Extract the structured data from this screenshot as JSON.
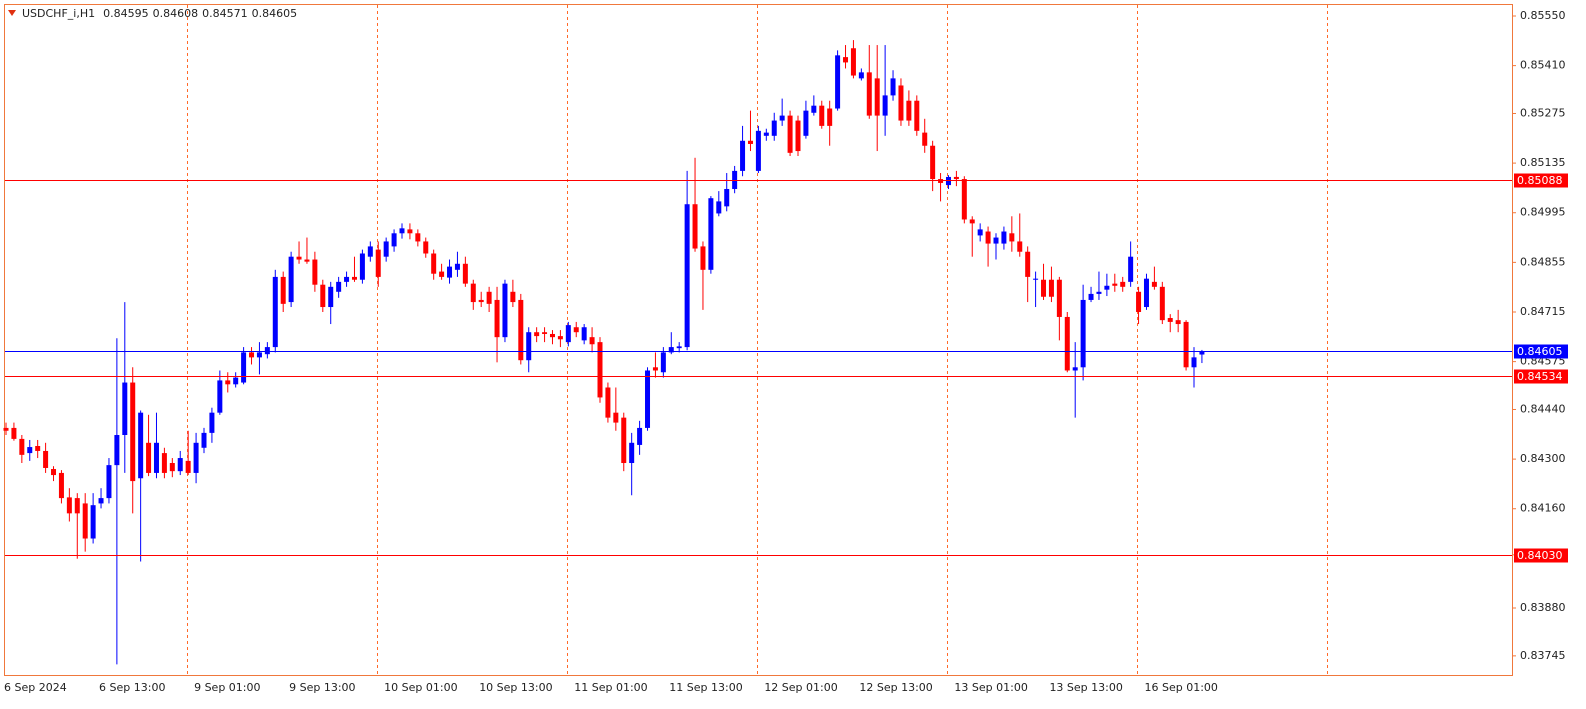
{
  "chart_data": {
    "type": "candlestick",
    "title": "USDCHF_i,H1",
    "up_color": "#0000ff",
    "down_color": "#ff0000",
    "ylim": [
      0.83691,
      0.85581
    ],
    "yticks": [
      {
        "value": 0.8555,
        "label": "0.85550"
      },
      {
        "value": 0.8541,
        "label": "0.85410"
      },
      0.85275,
      0.85135,
      0.84995,
      0.84855,
      0.84715,
      0.84575,
      {
        "value": 0.8444,
        "label": "0.84440"
      },
      {
        "value": 0.843,
        "label": "0.84300"
      },
      {
        "value": 0.8416,
        "label": "0.84160"
      },
      {
        "value": 0.8403,
        "label": "0.84030"
      },
      {
        "value": 0.8388,
        "label": "0.83880"
      },
      0.83745
    ],
    "hlines": [
      {
        "value": 0.85088,
        "color": "#ff0000"
      },
      {
        "value": 0.84605,
        "color": "#0000ff"
      },
      {
        "value": 0.84534,
        "color": "#ff0000"
      },
      {
        "value": 0.8403,
        "label": "0.84030",
        "color": "#ff0000"
      }
    ],
    "categories": [
      "6 Sep 2024",
      null,
      null,
      null,
      null,
      null,
      null,
      null,
      null,
      null,
      null,
      null,
      "6 Sep 13:00",
      null,
      null,
      null,
      null,
      null,
      null,
      null,
      null,
      null,
      null,
      null,
      "9 Sep 01:00",
      null,
      null,
      null,
      null,
      null,
      null,
      null,
      null,
      null,
      null,
      null,
      "9 Sep 13:00",
      null,
      null,
      null,
      null,
      null,
      null,
      null,
      null,
      null,
      null,
      null,
      "10 Sep 01:00",
      null,
      null,
      null,
      null,
      null,
      null,
      null,
      null,
      null,
      null,
      null,
      "10 Sep 13:00",
      null,
      null,
      null,
      null,
      null,
      null,
      null,
      null,
      null,
      null,
      null,
      "11 Sep 01:00",
      null,
      null,
      null,
      null,
      null,
      null,
      null,
      null,
      null,
      null,
      null,
      "11 Sep 13:00",
      null,
      null,
      null,
      null,
      null,
      null,
      null,
      null,
      null,
      null,
      null,
      "12 Sep 01:00",
      null,
      null,
      null,
      null,
      null,
      null,
      null,
      null,
      null,
      null,
      null,
      "12 Sep 13:00",
      null,
      null,
      null,
      null,
      null,
      null,
      null,
      null,
      null,
      null,
      null,
      "13 Sep 01:00",
      null,
      null,
      null,
      null,
      null,
      null,
      null,
      null,
      null,
      null,
      null,
      "13 Sep 13:00",
      null,
      null,
      null,
      null,
      null,
      null,
      null,
      null,
      null,
      null,
      null,
      "16 Sep 01:00",
      null,
      null,
      null,
      null,
      null,
      null,
      null
    ],
    "open": [
      0.84388,
      0.84388,
      0.84357,
      0.84317,
      0.84337,
      0.84323,
      0.84272,
      0.84261,
      0.84192,
      0.8419,
      0.84175,
      0.84076,
      0.84175,
      0.8419,
      0.84283,
      0.84368,
      0.84516,
      0.84246,
      0.84346,
      0.84261,
      0.84317,
      0.84289,
      0.84266,
      0.84295,
      0.84261,
      0.84332,
      0.84374,
      0.84431,
      0.84522,
      0.84511,
      0.84516,
      0.84601,
      0.84587,
      0.84596,
      0.84616,
      0.84814,
      0.84743,
      0.84871,
      0.84863,
      0.84863,
      0.84792,
      0.84729,
      0.84772,
      0.848,
      0.84814,
      0.84806,
      0.84871,
      0.84891,
      0.84871,
      0.849,
      0.84937,
      0.84948,
      0.84937,
      0.84914,
      0.8488,
      0.84829,
      0.84812,
      0.84834,
      0.84851,
      0.84795,
      0.84749,
      0.84772,
      0.84749,
      0.84644,
      0.84772,
      0.84749,
      0.84579,
      0.84658,
      0.84658,
      0.84653,
      0.84647,
      0.8463,
      0.84672,
      0.84635,
      0.84644,
      0.8463,
      0.84502,
      0.84431,
      0.84417,
      0.84289,
      0.8434,
      0.84388,
      0.84559,
      0.84545,
      0.84601,
      0.84613,
      0.84616,
      0.85019,
      0.849,
      0.84834,
      0.84993,
      0.85013,
      0.85062,
      0.85113,
      0.85198,
      0.85113,
      0.85212,
      0.85212,
      0.85255,
      0.85269,
      0.85255,
      0.85212,
      0.85277,
      0.85297,
      0.85289,
      0.85289,
      0.85434,
      0.85459,
      0.85374,
      0.85391,
      0.85374,
      0.85269,
      0.85326,
      0.85354,
      0.85311,
      0.85311,
      0.85221,
      0.85184,
      0.8509,
      0.85073,
      0.85096,
      0.8509,
      0.84976,
      0.84931,
      0.84942,
      0.84908,
      0.84908,
      0.84937,
      0.84914,
      0.84885,
      0.84806,
      0.84806,
      0.84806,
      0.84806,
      0.84701,
      0.8455,
      0.84559,
      0.84749,
      0.84766,
      0.84778,
      0.84795,
      0.848,
      0.848,
      0.84772,
      0.84729,
      0.848,
      0.84786,
      0.84698,
      0.84692,
      0.84687,
      0.84559,
      0.84595
    ],
    "high": [
      0.84403,
      0.84403,
      0.84368,
      0.84354,
      0.84354,
      0.84346,
      0.8428,
      0.84269,
      0.84218,
      0.84204,
      0.84204,
      0.84204,
      0.84218,
      0.84303,
      0.84641,
      0.84743,
      0.84559,
      0.84437,
      0.84425,
      0.84431,
      0.84332,
      0.84303,
      0.84323,
      0.8438,
      0.84374,
      0.84388,
      0.84445,
      0.8455,
      0.84545,
      0.84545,
      0.84616,
      0.84616,
      0.8463,
      0.8463,
      0.84834,
      0.84829,
      0.84885,
      0.84914,
      0.84925,
      0.84885,
      0.84806,
      0.848,
      0.84814,
      0.84829,
      0.84871,
      0.84891,
      0.84914,
      0.84914,
      0.84925,
      0.84948,
      0.84965,
      0.84965,
      0.84948,
      0.84925,
      0.84891,
      0.84851,
      0.84863,
      0.84885,
      0.84871,
      0.84806,
      0.84772,
      0.84786,
      0.84786,
      0.84806,
      0.84806,
      0.84766,
      0.84672,
      0.84672,
      0.84672,
      0.84664,
      0.84664,
      0.84687,
      0.84687,
      0.84681,
      0.84672,
      0.84644,
      0.84516,
      0.84502,
      0.84431,
      0.84374,
      0.84408,
      0.84559,
      0.84601,
      0.84616,
      0.84658,
      0.8463,
      0.85113,
      0.8515,
      0.84914,
      0.85042,
      0.85056,
      0.85107,
      0.85127,
      0.8524,
      0.85283,
      0.8524,
      0.85232,
      0.85277,
      0.85317,
      0.85283,
      0.85269,
      0.85311,
      0.85326,
      0.85311,
      0.85311,
      0.85453,
      0.85468,
      0.85482,
      0.85402,
      0.85468,
      0.85468,
      0.85468,
      0.85397,
      0.85374,
      0.8534,
      0.85326,
      0.8526,
      0.85198,
      0.85107,
      0.85101,
      0.85113,
      0.85098,
      0.84985,
      0.84965,
      0.84956,
      0.84937,
      0.84956,
      0.84985,
      0.84993,
      0.849,
      0.84829,
      0.84851,
      0.84843,
      0.84814,
      0.84715,
      0.8463,
      0.84792,
      0.84786,
      0.84829,
      0.84823,
      0.84823,
      0.84814,
      0.84914,
      0.84786,
      0.84823,
      0.84843,
      0.848,
      0.84709,
      0.84721,
      0.84692,
      0.84616,
      0.84608
    ],
    "low": [
      0.84368,
      0.84352,
      0.84289,
      0.84295,
      0.84303,
      0.84261,
      0.84238,
      0.84175,
      0.84124,
      0.84019,
      0.84039,
      0.84062,
      0.84161,
      0.84175,
      0.83721,
      0.84261,
      0.84147,
      0.84011,
      0.84252,
      0.84246,
      0.84246,
      0.84249,
      0.84255,
      0.84255,
      0.84232,
      0.84317,
      0.84346,
      0.84425,
      0.84488,
      0.84502,
      0.84511,
      0.84567,
      0.84539,
      0.84584,
      0.84601,
      0.84715,
      0.84729,
      0.84851,
      0.84851,
      0.84772,
      0.84715,
      0.84681,
      0.84755,
      0.84786,
      0.848,
      0.84795,
      0.84857,
      0.84786,
      0.84857,
      0.84885,
      0.84922,
      0.8492,
      0.849,
      0.84868,
      0.84806,
      0.84806,
      0.84795,
      0.84814,
      0.84786,
      0.84721,
      0.84729,
      0.84715,
      0.84573,
      0.8463,
      0.84729,
      0.84567,
      0.84545,
      0.8463,
      0.8463,
      0.84624,
      0.84616,
      0.84618,
      0.84644,
      0.84624,
      0.84601,
      0.84459,
      0.84403,
      0.8438,
      0.84266,
      0.84198,
      0.84312,
      0.8438,
      0.8453,
      0.8453,
      0.84596,
      0.84601,
      0.84607,
      0.84885,
      0.84721,
      0.84823,
      0.84985,
      0.84999,
      0.8505,
      0.85098,
      0.85169,
      0.85107,
      0.85198,
      0.85198,
      0.8524,
      0.85155,
      0.85155,
      0.85204,
      0.85269,
      0.85232,
      0.85184,
      0.85283,
      0.85402,
      0.85374,
      0.85368,
      0.8526,
      0.85169,
      0.85212,
      0.85311,
      0.8524,
      0.8524,
      0.85212,
      0.85164,
      0.85056,
      0.85027,
      0.85062,
      0.8507,
      0.84965,
      0.84871,
      0.84914,
      0.84843,
      0.84863,
      0.84891,
      0.84885,
      0.84871,
      0.84743,
      0.84729,
      0.84749,
      0.84743,
      0.84635,
      0.84545,
      0.84417,
      0.84522,
      0.84743,
      0.84749,
      0.8476,
      0.84772,
      0.84772,
      0.84786,
      0.84681,
      0.84721,
      0.84778,
      0.84681,
      0.84658,
      0.84658,
      0.8455,
      0.84502,
      0.84571
    ],
    "close": [
      0.8438,
      0.84357,
      0.84312,
      0.84334,
      0.84323,
      0.84275,
      0.84255,
      0.8419,
      0.84147,
      0.84147,
      0.84076,
      0.8417,
      0.8419,
      0.84283,
      0.84368,
      0.84516,
      0.84238,
      0.84431,
      0.84261,
      0.84346,
      0.84261,
      0.84266,
      0.84303,
      0.84261,
      0.84346,
      0.84374,
      0.84431,
      0.84522,
      0.84511,
      0.8453,
      0.84601,
      0.84587,
      0.84601,
      0.84616,
      0.84814,
      0.84738,
      0.84871,
      0.84863,
      0.84857,
      0.84792,
      0.84729,
      0.84786,
      0.848,
      0.84814,
      0.84806,
      0.8488,
      0.849,
      0.84814,
      0.84914,
      0.84937,
      0.84951,
      0.84937,
      0.84914,
      0.8488,
      0.84823,
      0.84814,
      0.84843,
      0.84851,
      0.84795,
      0.84743,
      0.84743,
      0.84738,
      0.84644,
      0.84795,
      0.84743,
      0.84579,
      0.84658,
      0.84647,
      0.84653,
      0.84644,
      0.84638,
      0.84678,
      0.84658,
      0.84672,
      0.84624,
      0.84474,
      0.84417,
      0.84403,
      0.84289,
      0.84346,
      0.84388,
      0.8455,
      0.8455,
      0.84601,
      0.84616,
      0.84618,
      0.85019,
      0.84894,
      0.84834,
      0.85036,
      0.85027,
      0.85062,
      0.85113,
      0.85198,
      0.85189,
      0.85226,
      0.85221,
      0.85255,
      0.85269,
      0.85164,
      0.85169,
      0.85283,
      0.85297,
      0.8524,
      0.8524,
      0.85439,
      0.85419,
      0.85382,
      0.85391,
      0.85269,
      0.85269,
      0.85326,
      0.85374,
      0.85255,
      0.85255,
      0.85226,
      0.85184,
      0.8509,
      0.85079,
      0.85096,
      0.8509,
      0.84976,
      0.84965,
      0.84948,
      0.84908,
      0.84925,
      0.84942,
      0.84914,
      0.84885,
      0.84814,
      0.84809,
      0.84758,
      0.84758,
      0.84701,
      0.8455,
      0.84559,
      0.84749,
      0.84766,
      0.84772,
      0.84789,
      0.84789,
      0.84786,
      0.84871,
      0.84715,
      0.84809,
      0.84786,
      0.84692,
      0.84687,
      0.84681,
      0.84559,
      0.84587,
      0.84605
    ]
  }
}
